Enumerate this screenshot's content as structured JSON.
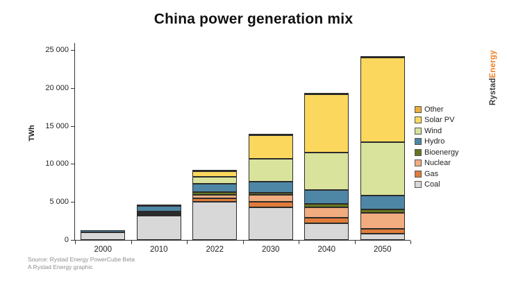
{
  "title": "China power generation mix",
  "brand": {
    "part1": "Rystad",
    "part2": "Energy",
    "accent_color": "#F08023"
  },
  "source": {
    "line1": "Source: Rystad Energy PowerCube Beta",
    "line2": "A Rystad Energy graphic"
  },
  "chart_data": {
    "type": "bar",
    "stacked": true,
    "title": "China power generation mix",
    "xlabel": "",
    "ylabel": "TWh",
    "ylim": [
      0,
      25000
    ],
    "grid": false,
    "legend_position": "right",
    "categories": [
      "2000",
      "2010",
      "2022",
      "2030",
      "2040",
      "2050"
    ],
    "series": [
      {
        "name": "Coal",
        "color": "#D8D8D8",
        "values": [
          1050,
          3150,
          5050,
          4250,
          2200,
          850
        ]
      },
      {
        "name": "Gas",
        "color": "#DF7C3A",
        "values": [
          15,
          85,
          390,
          750,
          750,
          600
        ]
      },
      {
        "name": "Nuclear",
        "color": "#F1AC80",
        "values": [
          17,
          75,
          515,
          900,
          1350,
          2100
        ]
      },
      {
        "name": "Bioenergy",
        "color": "#66761E",
        "values": [
          2,
          30,
          300,
          300,
          450,
          450
        ]
      },
      {
        "name": "Hydro",
        "color": "#4E87A6",
        "values": [
          240,
          770,
          1150,
          1500,
          1800,
          1800
        ]
      },
      {
        "name": "Wind",
        "color": "#D9E39C",
        "values": [
          1,
          45,
          900,
          3000,
          4950,
          7100
        ]
      },
      {
        "name": "Solar PV",
        "color": "#FBD85D",
        "values": [
          0,
          5,
          770,
          3070,
          7650,
          11100
        ]
      },
      {
        "name": "Other",
        "color": "#EAAE3D",
        "values": [
          0,
          0,
          30,
          80,
          80,
          100
        ]
      }
    ],
    "legend_order_top_to_bottom": [
      "Other",
      "Solar PV",
      "Wind",
      "Hydro",
      "Bioenergy",
      "Nuclear",
      "Gas",
      "Coal"
    ],
    "y_ticks": [
      {
        "value": 0,
        "label": "0"
      },
      {
        "value": 5000,
        "label": "5 000"
      },
      {
        "value": 10000,
        "label": "10 000"
      },
      {
        "value": 15000,
        "label": "15 000"
      },
      {
        "value": 20000,
        "label": "20 000"
      },
      {
        "value": 25000,
        "label": "25 000"
      }
    ]
  }
}
